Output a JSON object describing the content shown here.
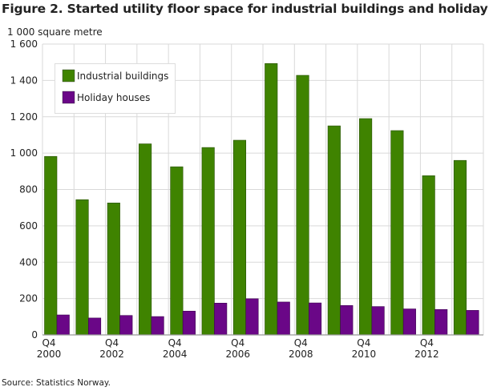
{
  "chart_data": {
    "type": "bar",
    "title": "Figure 2. Started utility floor space for industrial buildings and holiday houses",
    "ylabel": "1 000 square metre",
    "ylim": [
      0,
      1600
    ],
    "yticks": [
      0,
      200,
      400,
      600,
      800,
      1000,
      1200,
      1400,
      1600
    ],
    "ytick_labels": [
      "0",
      "200",
      "400",
      "600",
      "800",
      "1 000",
      "1 200",
      "1 400",
      "1 600"
    ],
    "categories": [
      "Q4 2000",
      "Q4 2001",
      "Q4 2002",
      "Q4 2003",
      "Q4 2004",
      "Q4 2005",
      "Q4 2006",
      "Q4 2007",
      "Q4 2008",
      "Q4 2009",
      "Q4 2010",
      "Q4 2011",
      "Q4 2012",
      "Q4 2013"
    ],
    "xtick_labels": [
      [
        "Q4",
        "2000"
      ],
      null,
      [
        "Q4",
        "2002"
      ],
      null,
      [
        "Q4",
        "2004"
      ],
      null,
      [
        "Q4",
        "2006"
      ],
      null,
      [
        "Q4",
        "2008"
      ],
      null,
      [
        "Q4",
        "2010"
      ],
      null,
      [
        "Q4",
        "2012"
      ],
      null
    ],
    "series": [
      {
        "name": "Industrial buildings",
        "color": "#3f8300",
        "values": [
          982,
          744,
          726,
          1051,
          925,
          1031,
          1071,
          1493,
          1428,
          1150,
          1190,
          1124,
          876,
          960
        ]
      },
      {
        "name": "Holiday houses",
        "color": "#6a0787",
        "values": [
          110,
          93,
          107,
          101,
          131,
          175,
          199,
          181,
          176,
          162,
          156,
          143,
          140,
          135
        ]
      }
    ],
    "grid": true,
    "legend": "top-left"
  },
  "source": "Source: Statistics Norway."
}
